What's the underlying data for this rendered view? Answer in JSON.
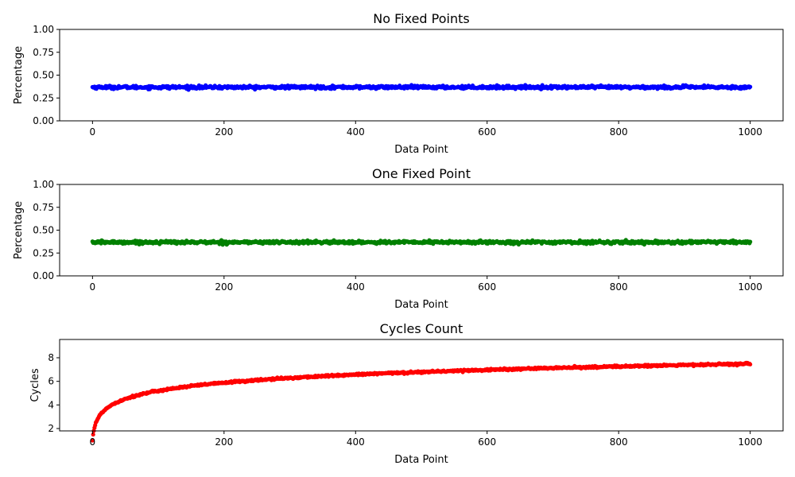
{
  "chart_data": [
    {
      "type": "scatter",
      "title": "No Fixed Points",
      "xlabel": "Data Point",
      "ylabel": "Percentage",
      "xlim": [
        -50,
        1050
      ],
      "ylim": [
        0,
        1
      ],
      "xticks": [
        "0",
        "200",
        "400",
        "600",
        "800",
        "1000"
      ],
      "yticks": [
        "0.00",
        "0.25",
        "0.50",
        "0.75",
        "1.00"
      ],
      "color": "#0000ff",
      "series": [
        {
          "x_range": [
            0,
            1000
          ],
          "count": 1001,
          "model": "constant",
          "center": 0.368,
          "noise": 0.008
        }
      ]
    },
    {
      "type": "scatter",
      "title": "One Fixed Point",
      "xlabel": "Data Point",
      "ylabel": "Percentage",
      "xlim": [
        -50,
        1050
      ],
      "ylim": [
        0,
        1
      ],
      "xticks": [
        "0",
        "200",
        "400",
        "600",
        "800",
        "1000"
      ],
      "yticks": [
        "0.00",
        "0.25",
        "0.50",
        "0.75",
        "1.00"
      ],
      "color": "#008000",
      "series": [
        {
          "x_range": [
            0,
            1000
          ],
          "count": 1001,
          "model": "constant",
          "center": 0.368,
          "noise": 0.008
        }
      ]
    },
    {
      "type": "scatter",
      "title": "Cycles Count",
      "xlabel": "Data Point",
      "ylabel": "Cycles",
      "xlim": [
        -50,
        1050
      ],
      "ylim": [
        1.8,
        9.55
      ],
      "xticks": [
        "0",
        "200",
        "400",
        "600",
        "800",
        "1000"
      ],
      "yticks": [
        "2",
        "4",
        "6",
        "8"
      ],
      "color": "#ff0000",
      "series": [
        {
          "x_range": [
            0,
            1000
          ],
          "count": 1001,
          "model": "harmonic",
          "noise": 0.04
        }
      ]
    }
  ]
}
